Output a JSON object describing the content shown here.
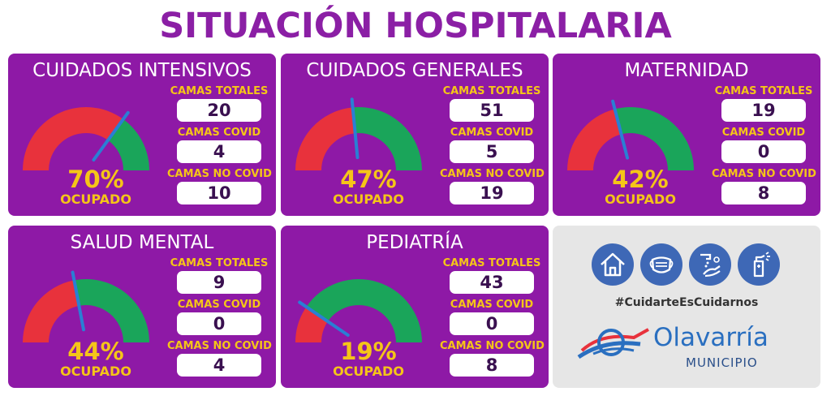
{
  "title": "SITUACIÓN HOSPITALARIA",
  "colors": {
    "panel": "#8e19a6",
    "gauge_red": "#e8323c",
    "gauge_green": "#1aa55a",
    "needle": "#2a7fd4",
    "accent_yellow": "#f5c518"
  },
  "panels": [
    {
      "name": "CUIDADOS INTENSIVOS",
      "occupancy_pct": "70%",
      "occupancy": 0.7,
      "occupied_label": "OCUPADO",
      "total_label": "CAMAS TOTALES",
      "total": "20",
      "covid_label": "CAMAS COVID",
      "covid": "4",
      "noncovid_label": "CAMAS NO COVID",
      "noncovid": "10"
    },
    {
      "name": "CUIDADOS GENERALES",
      "occupancy_pct": "47%",
      "occupancy": 0.47,
      "occupied_label": "OCUPADO",
      "total_label": "CAMAS TOTALES",
      "total": "51",
      "covid_label": "CAMAS COVID",
      "covid": "5",
      "noncovid_label": "CAMAS NO COVID",
      "noncovid": "19"
    },
    {
      "name": "MATERNIDAD",
      "occupancy_pct": "42%",
      "occupancy": 0.42,
      "occupied_label": "OCUPADO",
      "total_label": "CAMAS TOTALES",
      "total": "19",
      "covid_label": "CAMAS COVID",
      "covid": "0",
      "noncovid_label": "CAMAS NO COVID",
      "noncovid": "8"
    },
    {
      "name": "SALUD MENTAL",
      "occupancy_pct": "44%",
      "occupancy": 0.44,
      "occupied_label": "OCUPADO",
      "total_label": "CAMAS TOTALES",
      "total": "9",
      "covid_label": "CAMAS COVID",
      "covid": "0",
      "noncovid_label": "CAMAS NO COVID",
      "noncovid": "4"
    },
    {
      "name": "PEDIATRÍA",
      "occupancy_pct": "19%",
      "occupancy": 0.19,
      "occupied_label": "OCUPADO",
      "total_label": "CAMAS TOTALES",
      "total": "43",
      "covid_label": "CAMAS COVID",
      "covid": "0",
      "noncovid_label": "CAMAS NO COVID",
      "noncovid": "8"
    }
  ],
  "info": {
    "icons": [
      "house-icon",
      "face-mask-icon",
      "hand-washing-icon",
      "sanitizer-spray-icon"
    ],
    "hashtag": "#CuidarteEsCuidarnos",
    "logo_name": "Olavarría",
    "logo_sub": "MUNICIPIO"
  }
}
